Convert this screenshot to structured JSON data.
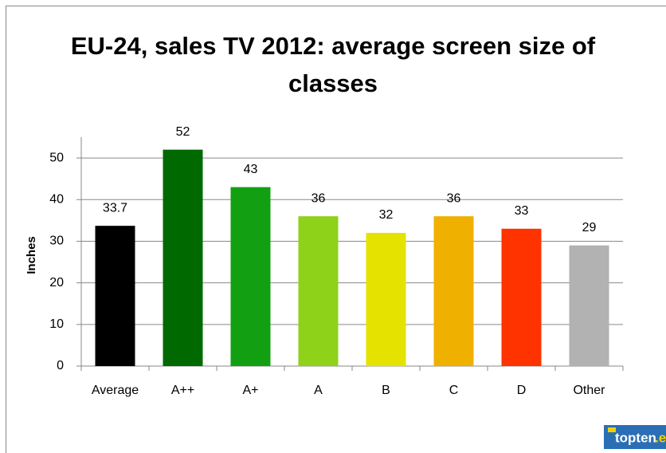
{
  "chart_data": {
    "type": "bar",
    "title": "EU-24, sales TV 2012: average screen size of classes",
    "y_label": "Inches",
    "categories": [
      "Average",
      "A++",
      "A+",
      "A",
      "B",
      "C",
      "D",
      "Other"
    ],
    "values": [
      33.7,
      52,
      43,
      36,
      32,
      36,
      33,
      29
    ],
    "colors": [
      "#000000",
      "#006a00",
      "#12a012",
      "#8ed21a",
      "#e6e200",
      "#efb000",
      "#ff3300",
      "#b2b2b2"
    ],
    "ylim": [
      0,
      55
    ],
    "yticks": [
      0,
      10,
      20,
      30,
      40,
      50
    ],
    "grid": true
  },
  "logo": {
    "name": "topten",
    "suffix": ".eu"
  }
}
